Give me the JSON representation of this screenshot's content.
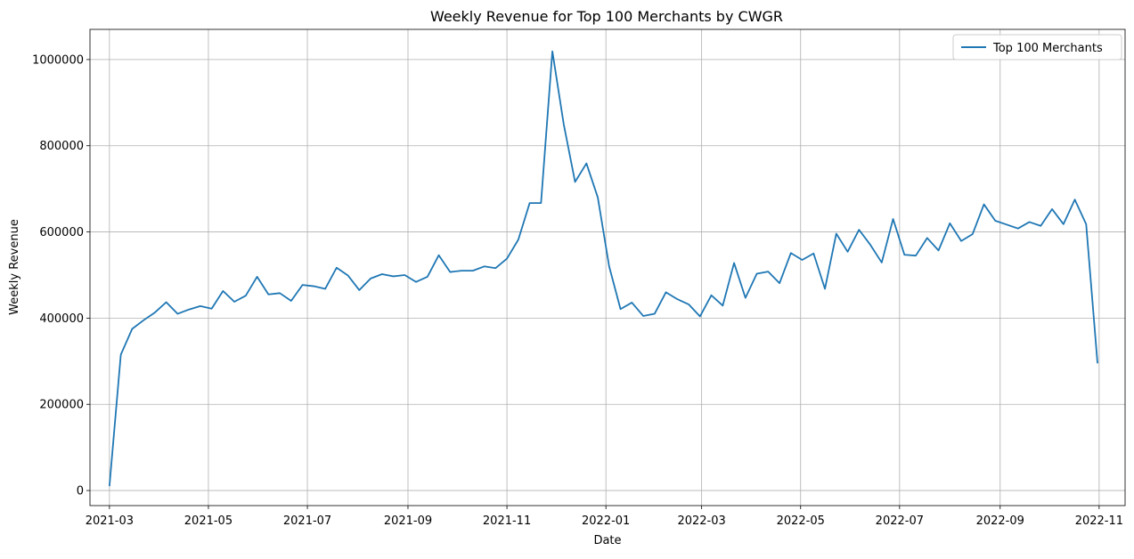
{
  "chart_data": {
    "type": "line",
    "title": "Weekly Revenue for Top 100 Merchants by CWGR",
    "xlabel": "Date",
    "ylabel": "Weekly Revenue",
    "x_axis_type": "date",
    "xlim": [
      "2021-02-17",
      "2022-11-17"
    ],
    "ylim": [
      -35000,
      1070000
    ],
    "grid": true,
    "legend_position": "top-right",
    "x_ticks": [
      {
        "date": "2021-03-01",
        "label": "2021-03"
      },
      {
        "date": "2021-05-01",
        "label": "2021-05"
      },
      {
        "date": "2021-07-01",
        "label": "2021-07"
      },
      {
        "date": "2021-09-01",
        "label": "2021-09"
      },
      {
        "date": "2021-11-01",
        "label": "2021-11"
      },
      {
        "date": "2022-01-01",
        "label": "2022-01"
      },
      {
        "date": "2022-03-01",
        "label": "2022-03"
      },
      {
        "date": "2022-05-01",
        "label": "2022-05"
      },
      {
        "date": "2022-07-01",
        "label": "2022-07"
      },
      {
        "date": "2022-09-01",
        "label": "2022-09"
      },
      {
        "date": "2022-11-01",
        "label": "2022-11"
      }
    ],
    "y_ticks": [
      {
        "value": 0,
        "label": "0"
      },
      {
        "value": 200000,
        "label": "200000"
      },
      {
        "value": 400000,
        "label": "400000"
      },
      {
        "value": 600000,
        "label": "600000"
      },
      {
        "value": 800000,
        "label": "800000"
      },
      {
        "value": 1000000,
        "label": "1000000"
      }
    ],
    "series": [
      {
        "name": "Top 100 Merchants",
        "color": "#1f77b4",
        "x_start": "2021-03-01",
        "x_step_days": 7,
        "values": [
          10000,
          315000,
          375000,
          395000,
          413000,
          437000,
          410000,
          420000,
          428000,
          422000,
          463000,
          438000,
          452000,
          496000,
          455000,
          458000,
          440000,
          477000,
          474000,
          468000,
          517000,
          499000,
          465000,
          492000,
          502000,
          497000,
          500000,
          484000,
          496000,
          546000,
          507000,
          510000,
          510000,
          520000,
          516000,
          538000,
          582000,
          667000,
          667000,
          1019000,
          850000,
          716000,
          759000,
          680000,
          520000,
          421000,
          436000,
          405000,
          410000,
          460000,
          444000,
          432000,
          404000,
          453000,
          429000,
          528000,
          447000,
          503000,
          508000,
          481000,
          551000,
          535000,
          550000,
          468000,
          596000,
          554000,
          605000,
          570000,
          529000,
          630000,
          547000,
          545000,
          586000,
          557000,
          620000,
          579000,
          595000,
          664000,
          626000,
          617000,
          608000,
          623000,
          614000,
          653000,
          618000,
          675000,
          618000,
          295000
        ]
      }
    ]
  }
}
